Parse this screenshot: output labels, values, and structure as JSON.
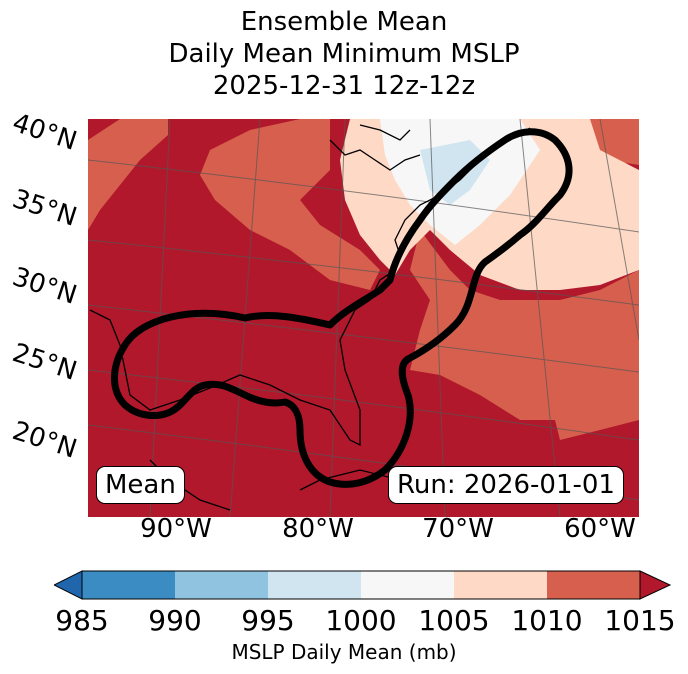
{
  "title": {
    "line1": "Ensemble Mean",
    "line2": "Daily Mean Minimum MSLP",
    "line3": "2025-12-31 12z-12z"
  },
  "map": {
    "lat_labels": [
      "40°N",
      "35°N",
      "30°N",
      "25°N",
      "20°N"
    ],
    "lon_labels": [
      "90°W",
      "80°W",
      "70°W",
      "60°W"
    ],
    "mean_box": "Mean",
    "run_box": "Run: 2026-01-01",
    "colors": {
      "c985_990": "#3b8cc2",
      "c990_995": "#8fc3df",
      "c995_1000": "#d1e5f0",
      "c1000_1005": "#f7f7f7",
      "c1005_1010": "#fdd9c6",
      "c1010_1015": "#d6604d",
      "c1015_plus": "#b2182b",
      "below_985": "#2166ac"
    }
  },
  "colorbar": {
    "ticks": [
      "985",
      "990",
      "995",
      "1000",
      "1005",
      "1010",
      "1015"
    ],
    "label": "MSLP Daily Mean (mb)"
  }
}
